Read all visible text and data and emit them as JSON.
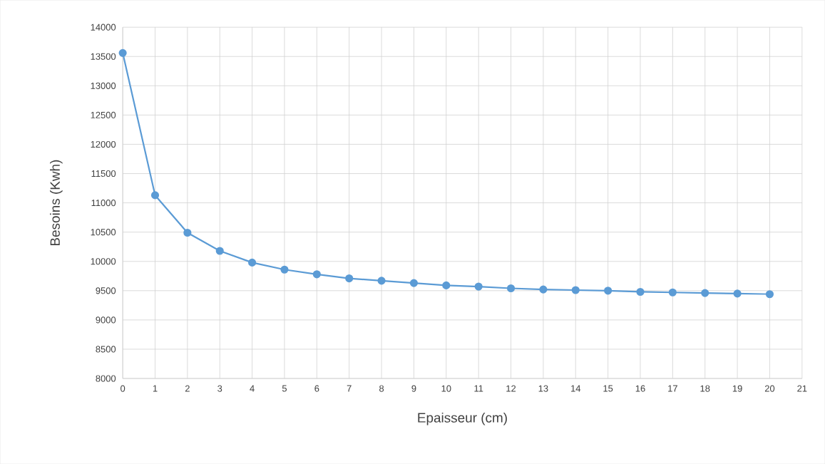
{
  "chart_data": {
    "type": "line",
    "xlabel": "Epaisseur (cm)",
    "ylabel": "Besoins (Kwh)",
    "x": [
      0,
      1,
      2,
      3,
      4,
      5,
      6,
      7,
      8,
      9,
      10,
      11,
      12,
      13,
      14,
      15,
      16,
      17,
      18,
      19,
      20
    ],
    "series": [
      {
        "color": "#5b9bd5",
        "values": [
          13560,
          11130,
          10490,
          10180,
          9980,
          9860,
          9780,
          9710,
          9670,
          9630,
          9590,
          9570,
          9540,
          9520,
          9510,
          9500,
          9480,
          9470,
          9460,
          9450,
          9440
        ]
      }
    ],
    "xlim": [
      0,
      21
    ],
    "xticks": [
      0,
      1,
      2,
      3,
      4,
      5,
      6,
      7,
      8,
      9,
      10,
      11,
      12,
      13,
      14,
      15,
      16,
      17,
      18,
      19,
      20,
      21
    ],
    "ylim": [
      8000,
      14000
    ],
    "yticks": [
      8000,
      8500,
      9000,
      9500,
      10000,
      10500,
      11000,
      11500,
      12000,
      12500,
      13000,
      13500,
      14000
    ],
    "grid": true,
    "marker": "circle",
    "line_style": "solid"
  }
}
